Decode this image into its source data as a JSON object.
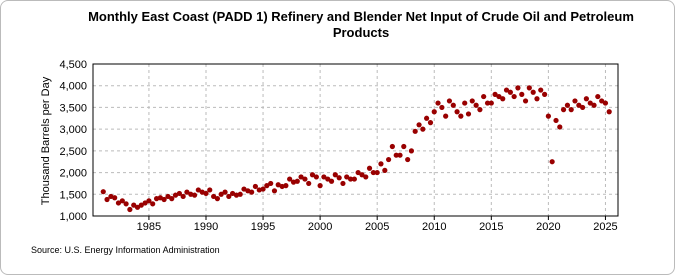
{
  "chart_data": {
    "type": "scatter",
    "title": "Monthly East Coast (PADD 1) Refinery and Blender Net Input of Crude Oil and Petroleum Products",
    "ylabel": "Thousand Barrels per Day",
    "source": "Source: U.S. Energy Information Administration",
    "color": "#990000",
    "grid": true,
    "xlim": [
      1980.1,
      2026.1
    ],
    "xticks": [
      1985,
      1990,
      1995,
      2000,
      2005,
      2010,
      2015,
      2020,
      2025
    ],
    "ylim": [
      1000,
      4500
    ],
    "yticks": [
      {
        "value": 1000,
        "label": "1,000"
      },
      {
        "value": 1500,
        "label": "1,500"
      },
      {
        "value": 2000,
        "label": "2,000"
      },
      {
        "value": 2500,
        "label": "2,500"
      },
      {
        "value": 3000,
        "label": "3,000"
      },
      {
        "value": 3500,
        "label": "3,500"
      },
      {
        "value": 4000,
        "label": "4,000"
      },
      {
        "value": 4500,
        "label": "4,500"
      }
    ],
    "x": [
      1981,
      1981.33,
      1981.67,
      1982,
      1982.33,
      1982.67,
      1983,
      1983.33,
      1983.67,
      1984,
      1984.33,
      1984.67,
      1985,
      1985.33,
      1985.67,
      1986,
      1986.33,
      1986.67,
      1987,
      1987.33,
      1987.67,
      1988,
      1988.33,
      1988.67,
      1989,
      1989.33,
      1989.67,
      1990,
      1990.33,
      1990.67,
      1991,
      1991.33,
      1991.67,
      1992,
      1992.33,
      1992.67,
      1993,
      1993.33,
      1993.67,
      1994,
      1994.33,
      1994.67,
      1995,
      1995.33,
      1995.67,
      1996,
      1996.33,
      1996.67,
      1997,
      1997.33,
      1997.67,
      1998,
      1998.33,
      1998.67,
      1999,
      1999.33,
      1999.67,
      2000,
      2000.33,
      2000.67,
      2001,
      2001.33,
      2001.67,
      2002,
      2002.33,
      2002.67,
      2003,
      2003.33,
      2003.67,
      2004,
      2004.33,
      2004.67,
      2005,
      2005.33,
      2005.67,
      2006,
      2006.33,
      2006.67,
      2007,
      2007.33,
      2007.67,
      2008,
      2008.33,
      2008.67,
      2009,
      2009.33,
      2009.67,
      2010,
      2010.33,
      2010.67,
      2011,
      2011.33,
      2011.67,
      2012,
      2012.33,
      2012.67,
      2013,
      2013.33,
      2013.67,
      2014,
      2014.33,
      2014.67,
      2015,
      2015.33,
      2015.67,
      2016,
      2016.33,
      2016.67,
      2017,
      2017.33,
      2017.67,
      2018,
      2018.33,
      2018.67,
      2019,
      2019.33,
      2019.67,
      2020,
      2020.33,
      2020.67,
      2021,
      2021.33,
      2021.67,
      2022,
      2022.33,
      2022.67,
      2023,
      2023.33,
      2023.67,
      2024,
      2024.33,
      2024.67,
      2025,
      2025.33
    ],
    "values": [
      1560,
      1380,
      1450,
      1420,
      1300,
      1350,
      1280,
      1150,
      1250,
      1200,
      1250,
      1300,
      1350,
      1280,
      1400,
      1420,
      1380,
      1450,
      1400,
      1480,
      1520,
      1450,
      1550,
      1500,
      1480,
      1600,
      1550,
      1520,
      1600,
      1450,
      1400,
      1500,
      1550,
      1450,
      1520,
      1480,
      1500,
      1620,
      1580,
      1550,
      1680,
      1600,
      1620,
      1700,
      1750,
      1580,
      1720,
      1680,
      1700,
      1850,
      1780,
      1800,
      1900,
      1850,
      1750,
      1950,
      1900,
      1700,
      1900,
      1850,
      1800,
      1950,
      1880,
      1750,
      1900,
      1850,
      1850,
      2000,
      1950,
      1900,
      2100,
      2000,
      2000,
      2200,
      2050,
      2300,
      2600,
      2400,
      2400,
      2600,
      2300,
      2500,
      2950,
      3100,
      3000,
      3250,
      3150,
      3400,
      3600,
      3500,
      3300,
      3650,
      3550,
      3400,
      3300,
      3600,
      3350,
      3650,
      3550,
      3450,
      3750,
      3600,
      3600,
      3800,
      3750,
      3700,
      3900,
      3850,
      3750,
      3950,
      3800,
      3650,
      3950,
      3850,
      3700,
      3900,
      3800,
      3300,
      2250,
      3200,
      3050,
      3450,
      3550,
      3450,
      3650,
      3550,
      3500,
      3700,
      3600,
      3550,
      3750,
      3650,
      3600,
      3400
    ]
  }
}
